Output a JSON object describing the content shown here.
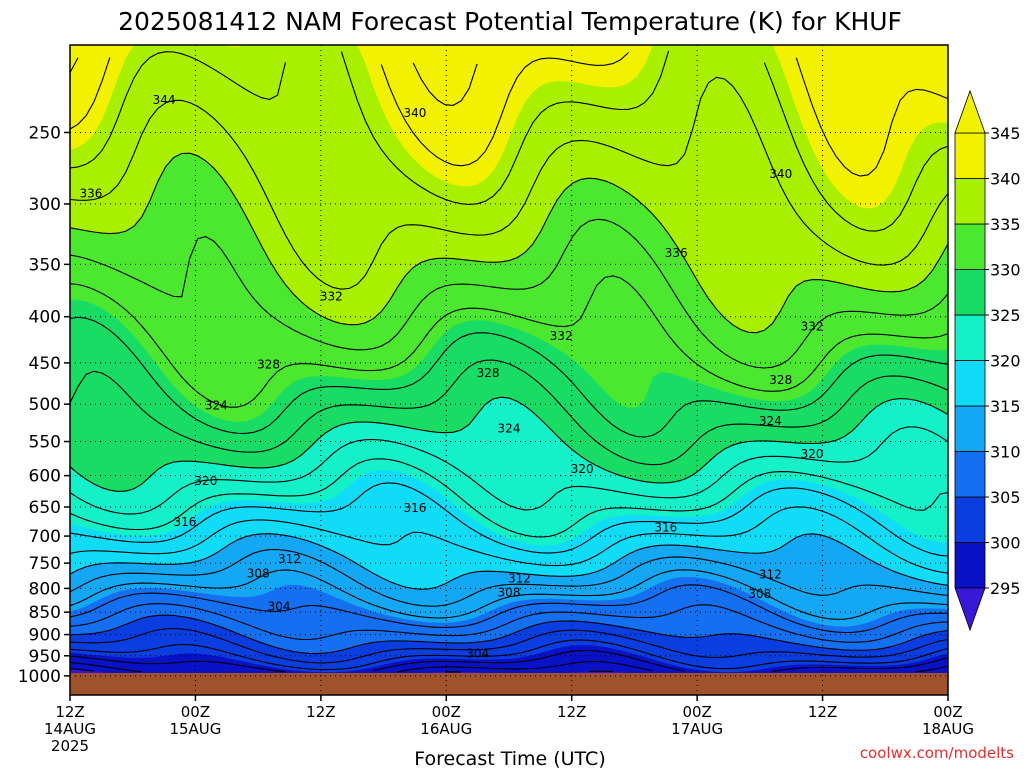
{
  "chart_data": {
    "type": "heatmap",
    "title": "2025081412 NAM Forecast Potential Temperature (K) for KHUF",
    "xlabel": "Forecast Time (UTC)",
    "credit": "coolwx.com/modelts",
    "yaxis": {
      "scale": "log-pressure",
      "ticks": [
        250,
        300,
        350,
        400,
        450,
        500,
        550,
        600,
        650,
        700,
        750,
        800,
        850,
        900,
        950,
        1000
      ],
      "top": 200,
      "bottom": 1050
    },
    "xaxis": {
      "ticks": [
        {
          "line1": "12Z",
          "line2": "14AUG",
          "line3": "2025"
        },
        {
          "line1": "00Z",
          "line2": "15AUG",
          "line3": ""
        },
        {
          "line1": "12Z",
          "line2": "",
          "line3": ""
        },
        {
          "line1": "00Z",
          "line2": "16AUG",
          "line3": ""
        },
        {
          "line1": "12Z",
          "line2": "",
          "line3": ""
        },
        {
          "line1": "00Z",
          "line2": "17AUG",
          "line3": ""
        },
        {
          "line1": "12Z",
          "line2": "",
          "line3": ""
        },
        {
          "line1": "00Z",
          "line2": "18AUG",
          "line3": ""
        }
      ],
      "hours": [
        0,
        84
      ]
    },
    "colorbar": {
      "levels": [
        295,
        300,
        305,
        310,
        315,
        320,
        325,
        330,
        335,
        340,
        345
      ],
      "labels": [
        "295",
        "300",
        "305",
        "310",
        "315",
        "320",
        "325",
        "330",
        "335",
        "340",
        "345"
      ],
      "colors": [
        "#3a10d8",
        "#0a12c8",
        "#0a3ee0",
        "#1470f0",
        "#14a8f4",
        "#10dcf8",
        "#14f0c8",
        "#18dc64",
        "#4ce830",
        "#a8f000",
        "#f2f200"
      ],
      "extend_below": "#3a18d8",
      "extend_above": "#f2f200"
    },
    "ground_color": "#a0522d",
    "contour_interval": 2,
    "contour_labels": [
      {
        "text": "344",
        "hour": 9,
        "p": 230
      },
      {
        "text": "340",
        "hour": 33,
        "p": 238
      },
      {
        "text": "340",
        "hour": 68,
        "p": 278
      },
      {
        "text": "336",
        "hour": 2,
        "p": 292
      },
      {
        "text": "336",
        "hour": 58,
        "p": 340
      },
      {
        "text": "332",
        "hour": 25,
        "p": 380
      },
      {
        "text": "332",
        "hour": 47,
        "p": 420
      },
      {
        "text": "332",
        "hour": 71,
        "p": 410
      },
      {
        "text": "328",
        "hour": 19,
        "p": 452
      },
      {
        "text": "328",
        "hour": 40,
        "p": 462
      },
      {
        "text": "328",
        "hour": 68,
        "p": 470
      },
      {
        "text": "324",
        "hour": 14,
        "p": 502
      },
      {
        "text": "324",
        "hour": 42,
        "p": 532
      },
      {
        "text": "324",
        "hour": 67,
        "p": 522
      },
      {
        "text": "320",
        "hour": 13,
        "p": 608
      },
      {
        "text": "320",
        "hour": 49,
        "p": 590
      },
      {
        "text": "320",
        "hour": 71,
        "p": 568
      },
      {
        "text": "316",
        "hour": 11,
        "p": 675
      },
      {
        "text": "316",
        "hour": 33,
        "p": 652
      },
      {
        "text": "316",
        "hour": 57,
        "p": 685
      },
      {
        "text": "312",
        "hour": 21,
        "p": 742
      },
      {
        "text": "312",
        "hour": 43,
        "p": 780
      },
      {
        "text": "312",
        "hour": 67,
        "p": 772
      },
      {
        "text": "308",
        "hour": 18,
        "p": 770
      },
      {
        "text": "308",
        "hour": 42,
        "p": 808
      },
      {
        "text": "308",
        "hour": 66,
        "p": 812
      },
      {
        "text": "304",
        "hour": 20,
        "p": 838
      },
      {
        "text": "304",
        "hour": 39,
        "p": 944
      }
    ]
  }
}
